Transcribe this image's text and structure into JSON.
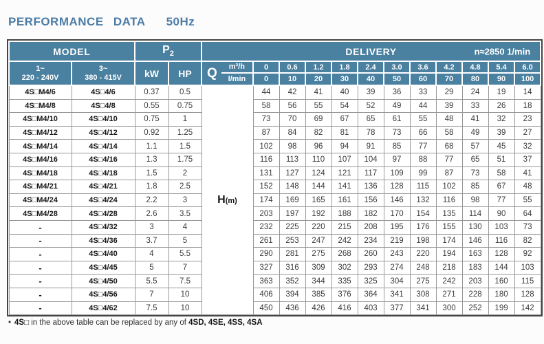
{
  "page": {
    "title_main": "PERFORMANCE DATA",
    "title_freq": "50Hz"
  },
  "colors": {
    "header_teal": "#4a80a0",
    "title_blue": "#4b7ba6",
    "cell_border_gray": "#979797",
    "frame_dark": "#454545"
  },
  "table": {
    "header": {
      "model": "MODEL",
      "p2_base": "P",
      "p2_sub": "2",
      "delivery": "DELIVERY",
      "speed": "n≈2850 1/min",
      "voltage1_line1": "1~",
      "voltage1_line2": "220 - 240V",
      "voltage2_line1": "3~",
      "voltage2_line2": "380 - 415V",
      "kw": "kW",
      "hp": "HP",
      "q": "Q",
      "q_unit_top": "m³/h",
      "q_unit_bottom": "l/min",
      "flow_m3h": [
        "0",
        "0.6",
        "1.2",
        "1.8",
        "2.4",
        "3.0",
        "3.6",
        "4.2",
        "4.8",
        "5.4",
        "6.0"
      ],
      "flow_lmin": [
        "0",
        "10",
        "20",
        "30",
        "40",
        "50",
        "60",
        "70",
        "80",
        "90",
        "100"
      ]
    },
    "h_label_base": "H",
    "h_label_unit": "(m)",
    "rows": [
      {
        "model1": "4S□M4/6",
        "model2": "4S□4/6",
        "kw": "0.37",
        "hp": "0.5",
        "values": [
          44,
          42,
          41,
          40,
          39,
          36,
          33,
          29,
          24,
          19,
          14
        ]
      },
      {
        "model1": "4S□M4/8",
        "model2": "4S□4/8",
        "kw": "0.55",
        "hp": "0.75",
        "values": [
          58,
          56,
          55,
          54,
          52,
          49,
          44,
          39,
          33,
          26,
          18
        ]
      },
      {
        "model1": "4S□M4/10",
        "model2": "4S□4/10",
        "kw": "0.75",
        "hp": "1",
        "values": [
          73,
          70,
          69,
          67,
          65,
          61,
          55,
          48,
          41,
          32,
          23
        ]
      },
      {
        "model1": "4S□M4/12",
        "model2": "4S□4/12",
        "kw": "0.92",
        "hp": "1.25",
        "values": [
          87,
          84,
          82,
          81,
          78,
          73,
          66,
          58,
          49,
          39,
          27
        ]
      },
      {
        "model1": "4S□M4/14",
        "model2": "4S□4/14",
        "kw": "1.1",
        "hp": "1.5",
        "values": [
          102,
          98,
          96,
          94,
          91,
          85,
          77,
          68,
          57,
          45,
          32
        ]
      },
      {
        "model1": "4S□M4/16",
        "model2": "4S□4/16",
        "kw": "1.3",
        "hp": "1.75",
        "values": [
          116,
          113,
          110,
          107,
          104,
          97,
          88,
          77,
          65,
          51,
          37
        ]
      },
      {
        "model1": "4S□M4/18",
        "model2": "4S□4/18",
        "kw": "1.5",
        "hp": "2",
        "values": [
          131,
          127,
          124,
          121,
          117,
          109,
          99,
          87,
          73,
          58,
          41
        ]
      },
      {
        "model1": "4S□M4/21",
        "model2": "4S□4/21",
        "kw": "1.8",
        "hp": "2.5",
        "values": [
          152,
          148,
          144,
          141,
          136,
          128,
          115,
          102,
          85,
          67,
          48
        ]
      },
      {
        "model1": "4S□M4/24",
        "model2": "4S□4/24",
        "kw": "2.2",
        "hp": "3",
        "values": [
          174,
          169,
          165,
          161,
          156,
          146,
          132,
          116,
          98,
          77,
          55
        ]
      },
      {
        "model1": "4S□M4/28",
        "model2": "4S□4/28",
        "kw": "2.6",
        "hp": "3.5",
        "values": [
          203,
          197,
          192,
          188,
          182,
          170,
          154,
          135,
          114,
          90,
          64
        ]
      },
      {
        "model1": "-",
        "model2": "4S□4/32",
        "kw": "3",
        "hp": "4",
        "values": [
          232,
          225,
          220,
          215,
          208,
          195,
          176,
          155,
          130,
          103,
          73
        ]
      },
      {
        "model1": "-",
        "model2": "4S□4/36",
        "kw": "3.7",
        "hp": "5",
        "values": [
          261,
          253,
          247,
          242,
          234,
          219,
          198,
          174,
          146,
          116,
          82
        ]
      },
      {
        "model1": "-",
        "model2": "4S□4/40",
        "kw": "4",
        "hp": "5.5",
        "values": [
          290,
          281,
          275,
          268,
          260,
          243,
          220,
          194,
          163,
          128,
          92
        ]
      },
      {
        "model1": "-",
        "model2": "4S□4/45",
        "kw": "5",
        "hp": "7",
        "values": [
          327,
          316,
          309,
          302,
          293,
          274,
          248,
          218,
          183,
          144,
          103
        ]
      },
      {
        "model1": "-",
        "model2": "4S□4/50",
        "kw": "5.5",
        "hp": "7.5",
        "values": [
          363,
          352,
          344,
          335,
          325,
          304,
          275,
          242,
          203,
          160,
          115
        ]
      },
      {
        "model1": "-",
        "model2": "4S□4/56",
        "kw": "7",
        "hp": "10",
        "values": [
          406,
          394,
          385,
          376,
          364,
          341,
          308,
          271,
          228,
          180,
          128
        ]
      },
      {
        "model1": "-",
        "model2": "4S□4/62",
        "kw": "7.5",
        "hp": "10",
        "values": [
          450,
          436,
          426,
          416,
          403,
          377,
          341,
          300,
          252,
          199,
          142
        ]
      }
    ]
  },
  "footnote": {
    "bullet": "•",
    "model_bold": "4S□",
    "text": " in the above table can be replaced by any of ",
    "models_bold": "4SD, 4SE, 4SS, 4SA"
  }
}
